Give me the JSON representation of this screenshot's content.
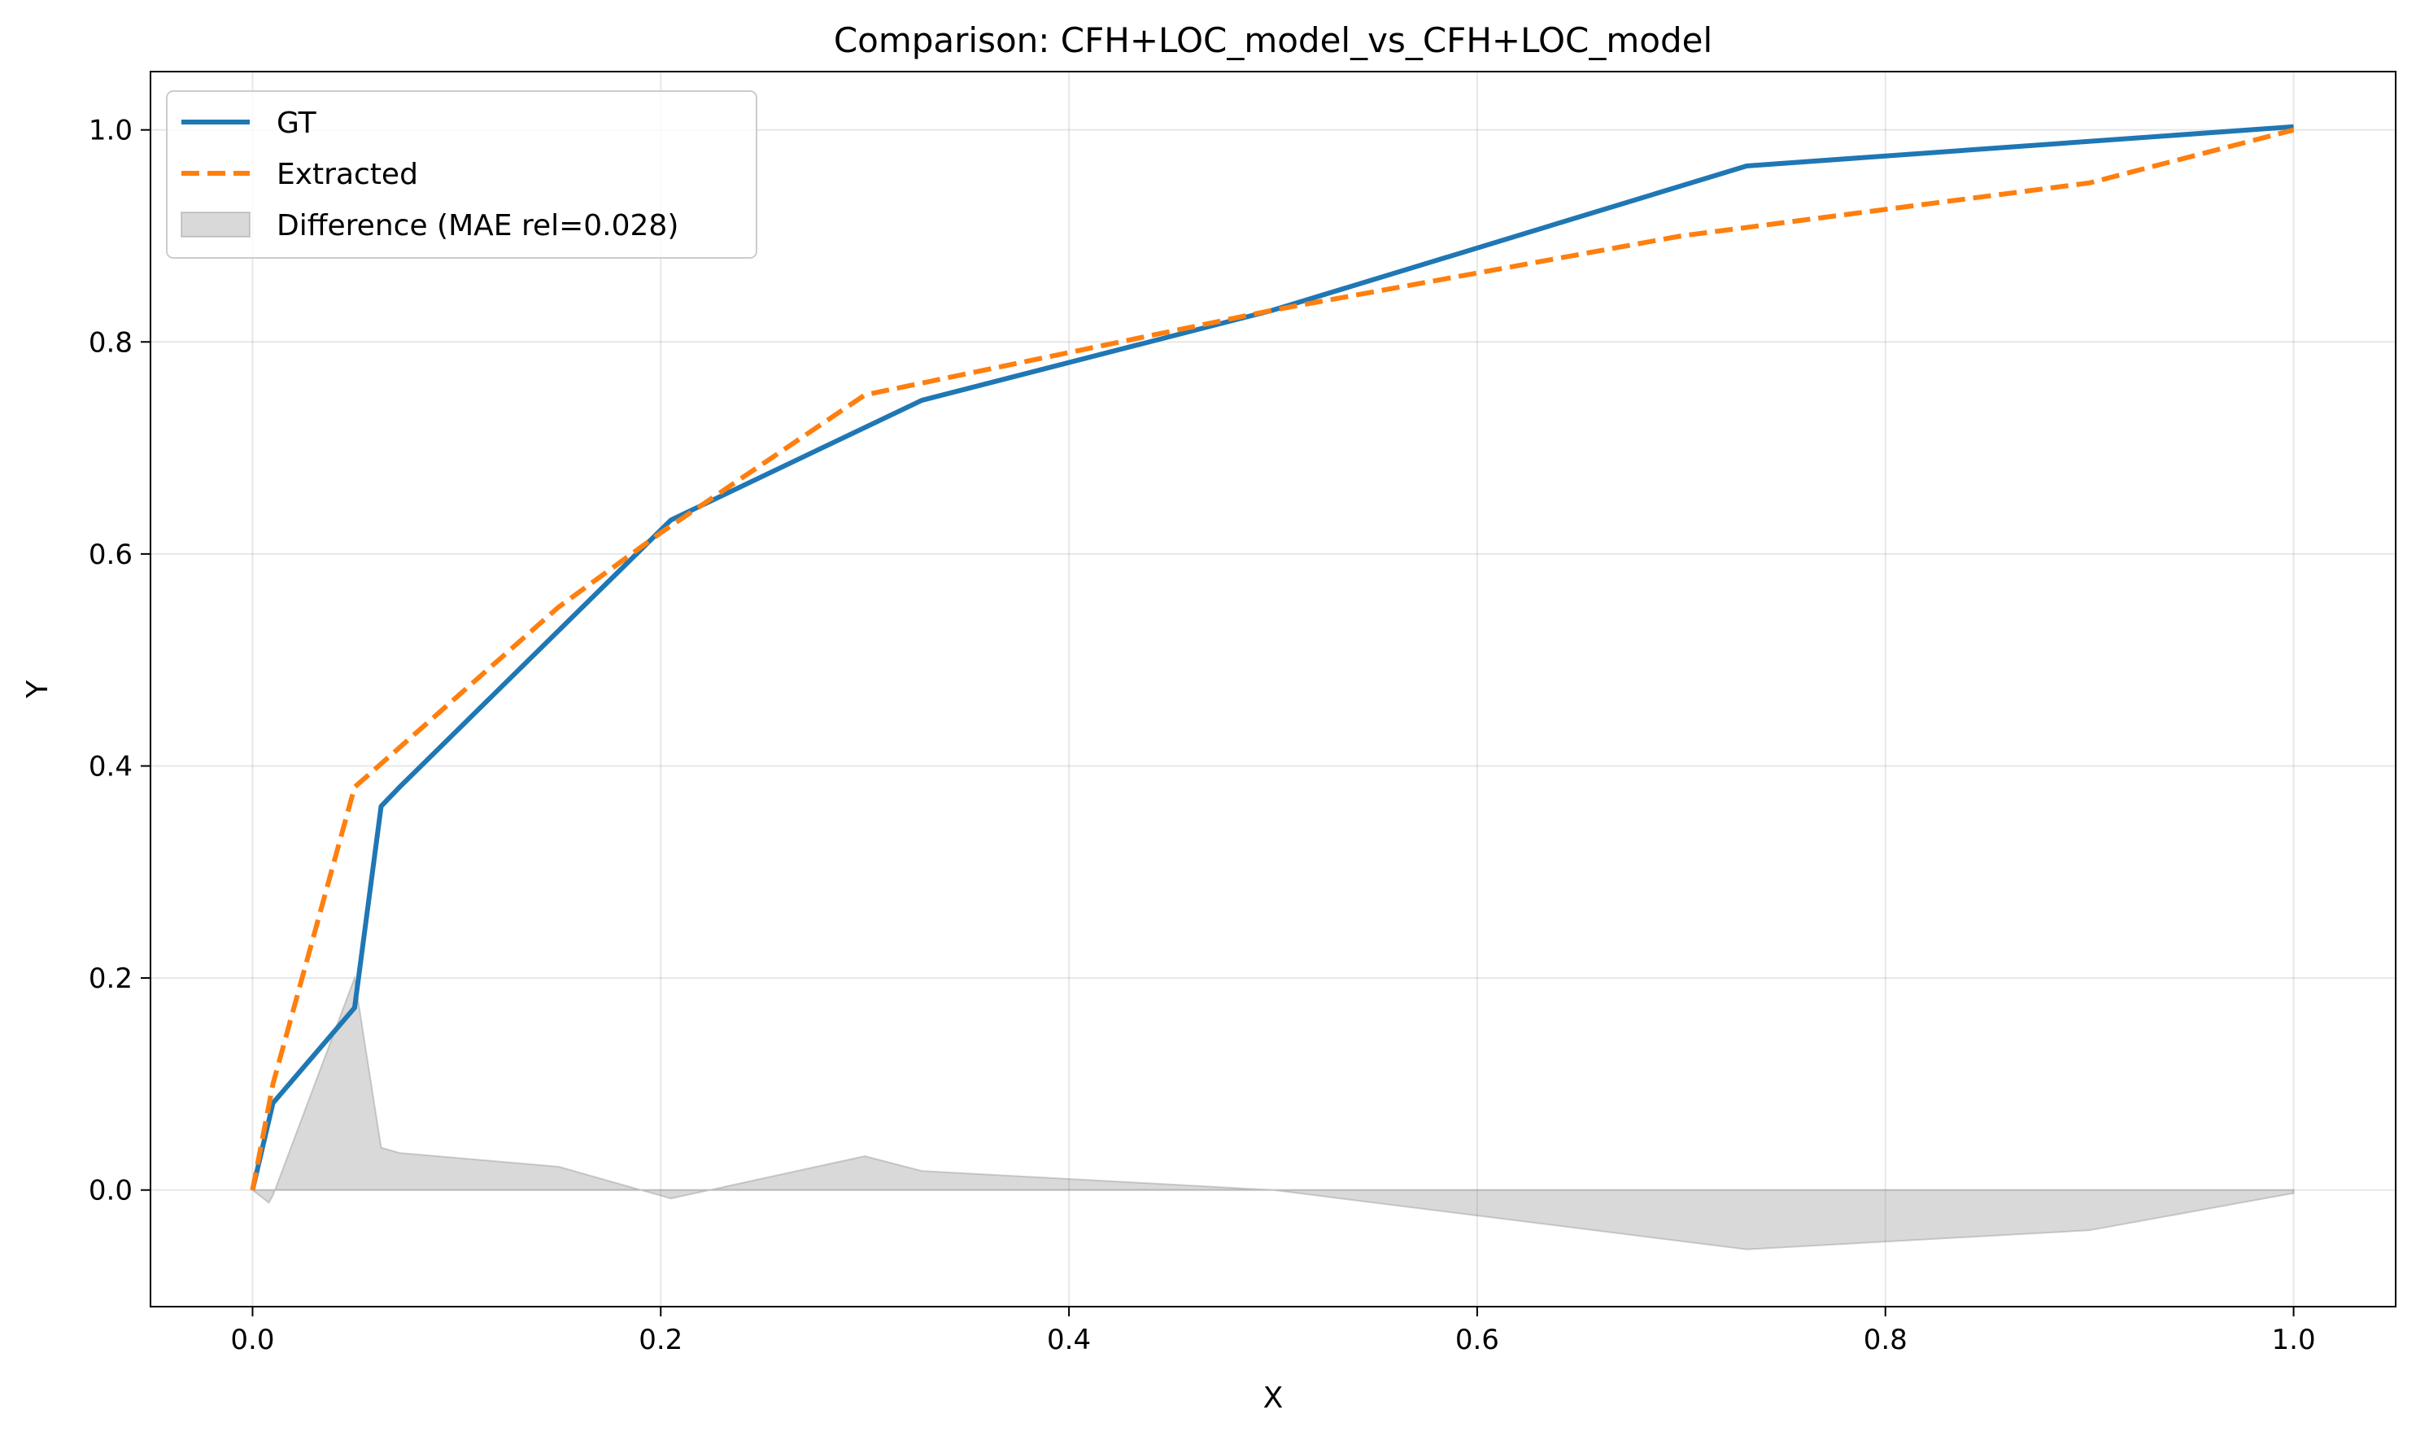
{
  "chart_data": {
    "type": "line",
    "title": "Comparison: CFH+LOC_model_vs_CFH+LOC_model",
    "xlabel": "X",
    "ylabel": "Y",
    "xlim": [
      -0.05,
      1.05
    ],
    "ylim": [
      -0.11,
      1.055
    ],
    "grid": true,
    "legend_position": "upper-left",
    "x_ticks": [
      "0.0",
      "0.2",
      "0.4",
      "0.6",
      "0.8",
      "1.0"
    ],
    "x_tick_values": [
      0.0,
      0.2,
      0.4,
      0.6,
      0.8,
      1.0
    ],
    "y_ticks": [
      "0.0",
      "0.2",
      "0.4",
      "0.6",
      "0.8",
      "1.0"
    ],
    "y_tick_values": [
      0.0,
      0.2,
      0.4,
      0.6,
      0.8,
      1.0
    ],
    "series": [
      {
        "name": "GT",
        "color": "#1f77b4",
        "style": "solid",
        "x": [
          0.0,
          0.01,
          0.05,
          0.063,
          0.072,
          0.205,
          0.328,
          0.5,
          0.732,
          1.0
        ],
        "y": [
          0.0,
          0.082,
          0.172,
          0.362,
          0.38,
          0.632,
          0.745,
          0.83,
          0.966,
          1.003
        ]
      },
      {
        "name": "Extracted",
        "color": "#ff7f0e",
        "style": "dashed",
        "x": [
          0.0,
          0.01,
          0.05,
          0.15,
          0.2,
          0.3,
          0.4,
          0.5,
          0.6,
          0.7,
          0.8,
          0.9,
          1.0
        ],
        "y": [
          0.0,
          0.1,
          0.38,
          0.55,
          0.62,
          0.75,
          0.79,
          0.83,
          0.865,
          0.9,
          0.925,
          0.95,
          1.0
        ]
      }
    ],
    "difference": {
      "name": "Difference (MAE rel=0.028)",
      "color": "#808080",
      "x": [
        0.0,
        0.008,
        0.01,
        0.05,
        0.063,
        0.072,
        0.15,
        0.205,
        0.3,
        0.328,
        0.5,
        0.732,
        0.9,
        1.0
      ],
      "y": [
        0.0,
        -0.012,
        -0.005,
        0.2,
        0.04,
        0.035,
        0.022,
        -0.008,
        0.032,
        0.018,
        0.0,
        -0.056,
        -0.038,
        -0.003
      ]
    }
  }
}
